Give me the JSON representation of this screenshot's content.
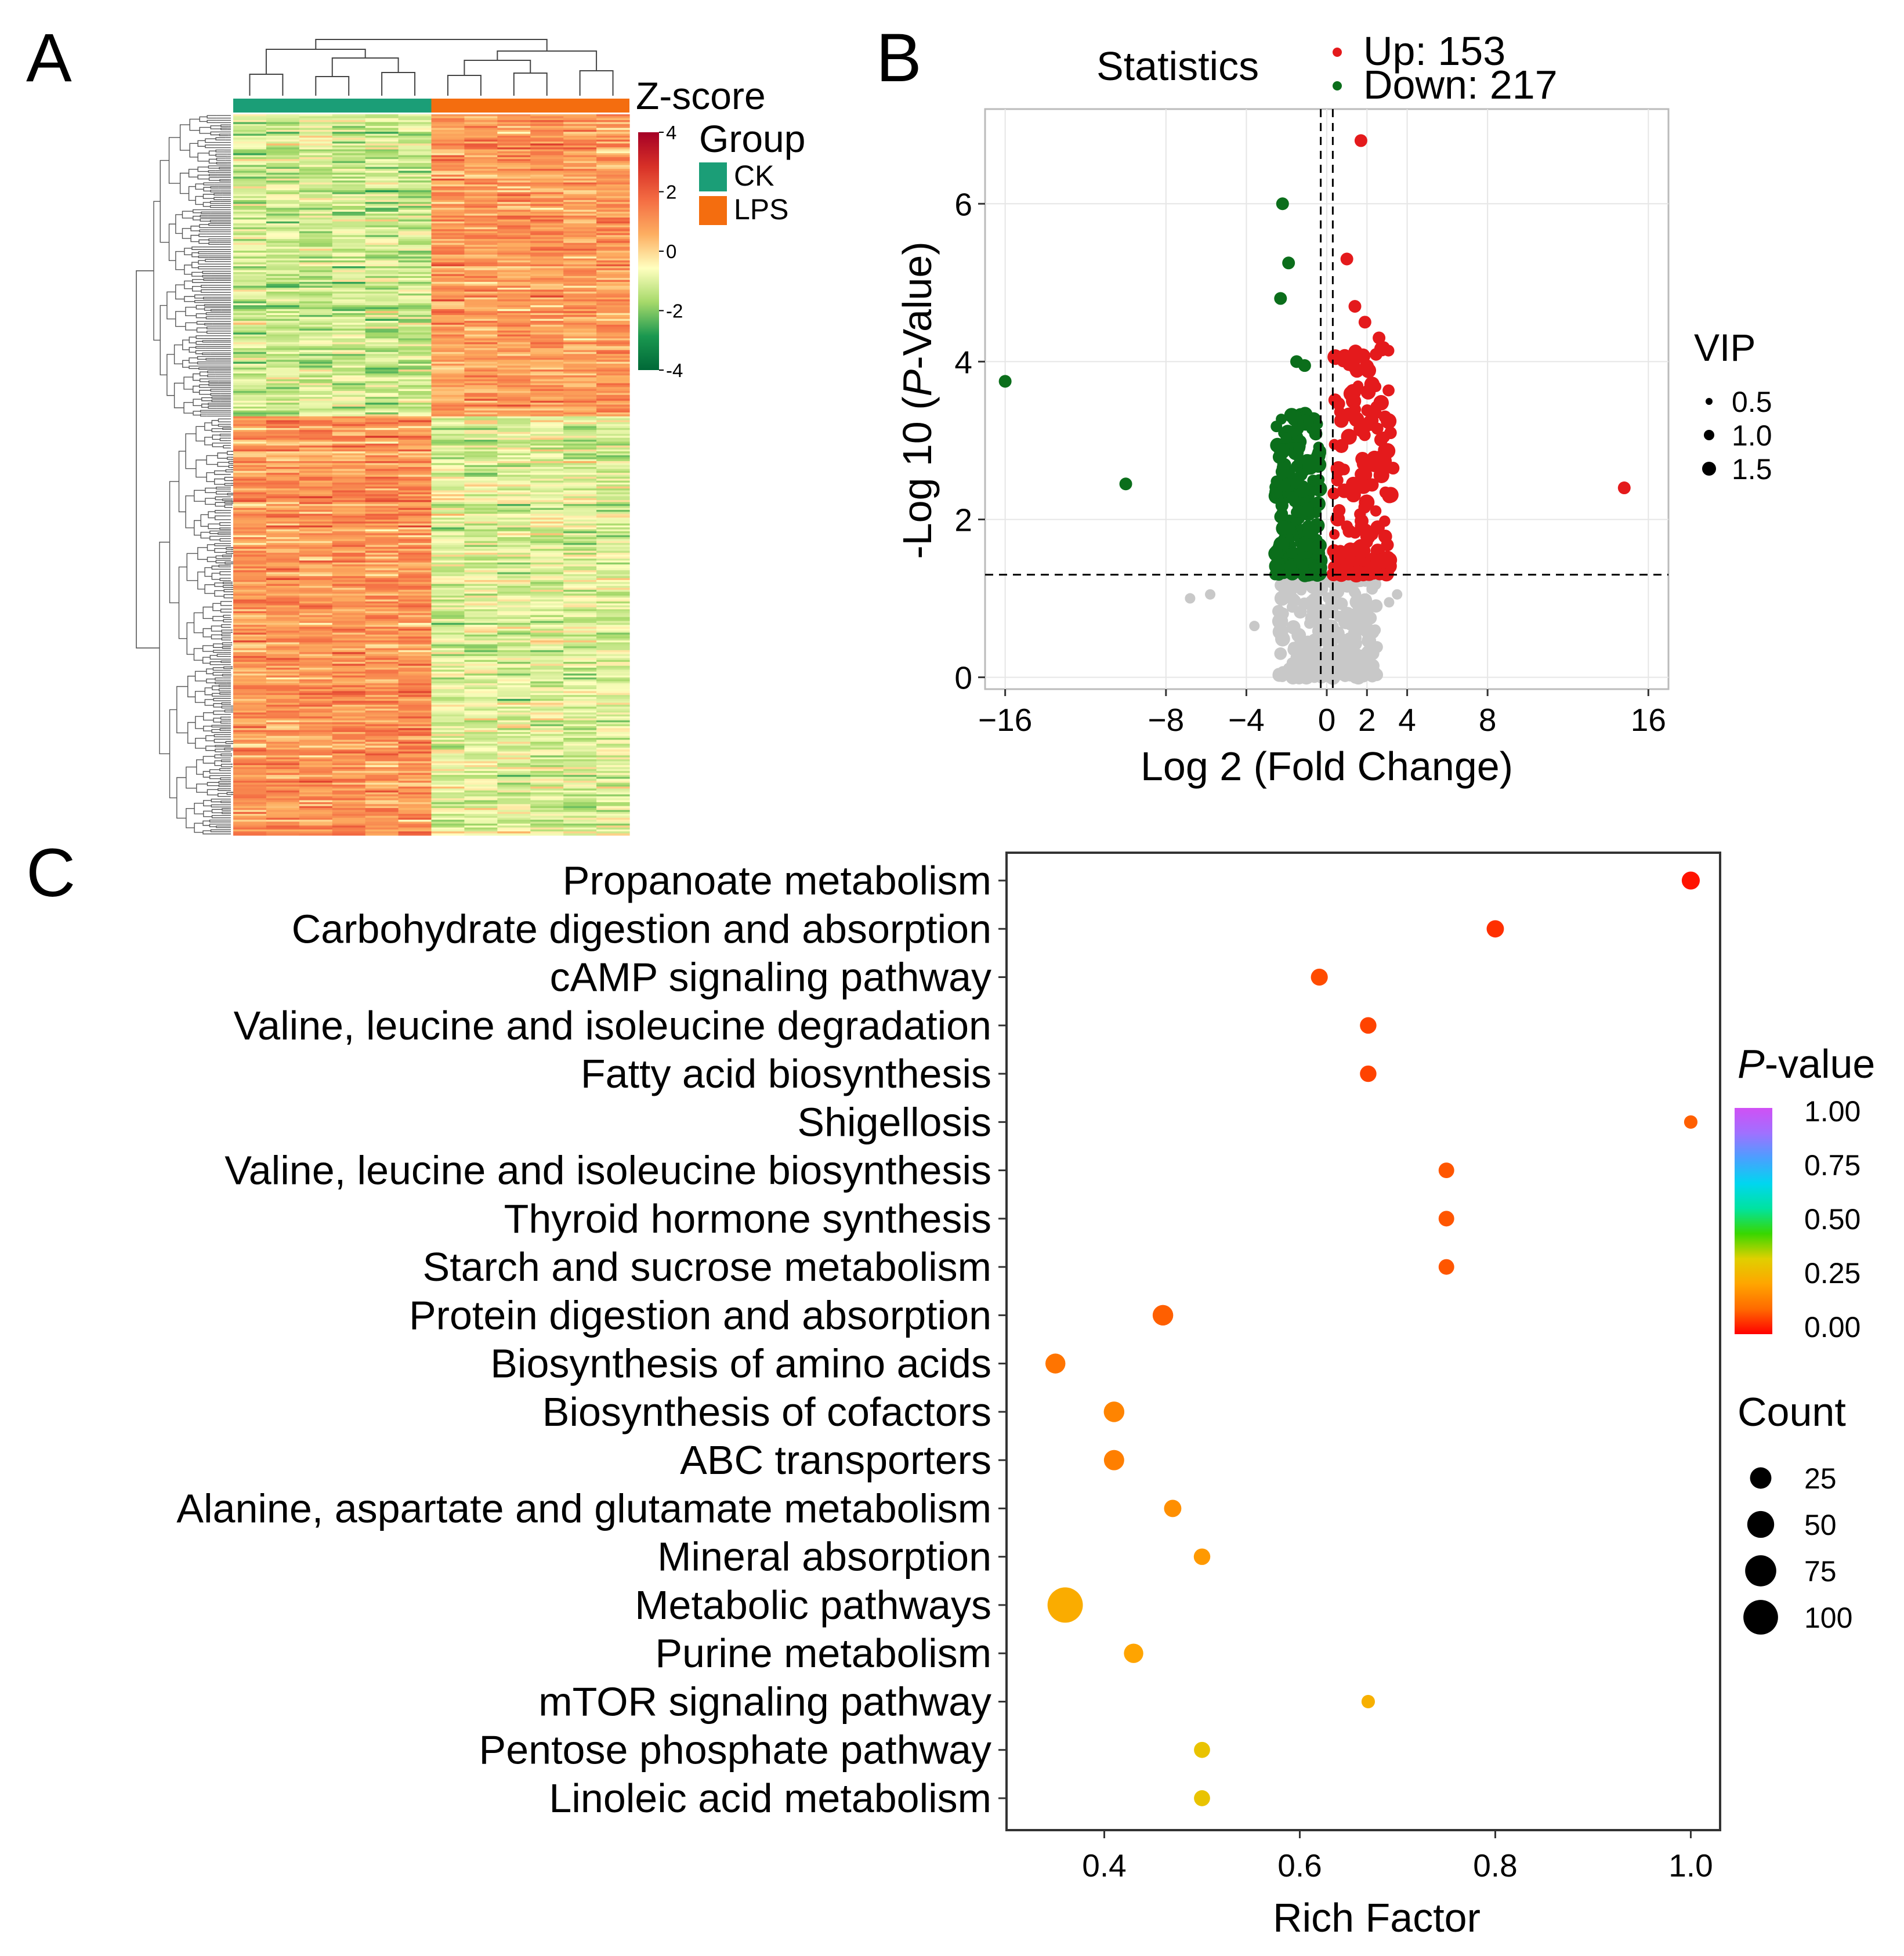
{
  "panels": {
    "a": "A",
    "b": "B",
    "c": "C"
  },
  "chart_data": [
    {
      "type": "heatmap",
      "panel": "A",
      "title": "",
      "legend_title": "Z-score",
      "legend_ticks": [
        4,
        2,
        0,
        -2,
        -4
      ],
      "colorscale": [
        "#006837",
        "#1a9850",
        "#a6d96a",
        "#ffffbf",
        "#fdae61",
        "#f46d43",
        "#d73027",
        "#a50026"
      ],
      "group_legend_title": "Group",
      "groups": [
        {
          "name": "CK",
          "color": "#1b9e77",
          "samples": 6
        },
        {
          "name": "LPS",
          "color": "#f46d0f",
          "samples": 6
        }
      ],
      "row_count": 370,
      "column_count": 12,
      "blocks": [
        {
          "rows": 0.42,
          "CK": -1.2,
          "LPS": 0.9
        },
        {
          "rows": 0.58,
          "CK": 1.0,
          "LPS": -1.0
        }
      ]
    },
    {
      "type": "scatter",
      "panel": "B",
      "title": "Statistics",
      "xlabel": "Log 2 (Fold Change)",
      "ylabel_prefix": "-Log 10 (",
      "ylabel_italic": "P",
      "ylabel_suffix": "-Value)",
      "xlim": [
        -17,
        17
      ],
      "ylim": [
        -0.15,
        7.2
      ],
      "x_ticks": [
        -16,
        -8,
        -4,
        0,
        2,
        4,
        8,
        16
      ],
      "x_tick_labels": [
        "−16",
        "−8",
        "−4",
        "0",
        "2",
        "4",
        "8",
        "16"
      ],
      "y_ticks": [
        0,
        2,
        4,
        6
      ],
      "thresholds": {
        "y": 1.3,
        "x": [
          -0.3,
          0.3
        ]
      },
      "legend": [
        {
          "label": "Up: 153",
          "color": "#e41a1c"
        },
        {
          "label": "Down: 217",
          "color": "#0b6e1b"
        }
      ],
      "size_legend_title": "VIP",
      "size_legend": [
        "0.5",
        "1.0",
        "1.5"
      ],
      "highlighted_points": [
        {
          "x": -16,
          "y": 3.75,
          "group": "down"
        },
        {
          "x": -10,
          "y": 2.45,
          "group": "down"
        },
        {
          "x": -2.2,
          "y": 6.0,
          "group": "down"
        },
        {
          "x": -1.9,
          "y": 5.25,
          "group": "down"
        },
        {
          "x": -2.3,
          "y": 4.8,
          "group": "down"
        },
        {
          "x": -1.5,
          "y": 4.0,
          "group": "down"
        },
        {
          "x": -1.1,
          "y": 3.95,
          "group": "down"
        },
        {
          "x": 1.7,
          "y": 6.8,
          "group": "up"
        },
        {
          "x": 1.0,
          "y": 5.3,
          "group": "up"
        },
        {
          "x": 14.8,
          "y": 2.4,
          "group": "up"
        },
        {
          "x": 2.6,
          "y": 4.3,
          "group": "up"
        },
        {
          "x": 1.9,
          "y": 4.5,
          "group": "up"
        },
        {
          "x": 1.4,
          "y": 4.7,
          "group": "up"
        },
        {
          "x": 3.3,
          "y": 2.65,
          "group": "up"
        },
        {
          "x": 2.9,
          "y": 3.3,
          "group": "up"
        }
      ],
      "down_cloud": {
        "count": 217,
        "x": [
          -2.6,
          -0.3
        ],
        "y": [
          1.3,
          3.4
        ]
      },
      "up_cloud": {
        "count": 153,
        "x": [
          0.3,
          3.2
        ],
        "y": [
          1.3,
          4.2
        ]
      },
      "ns_cloud": {
        "count": 230,
        "x": [
          -2.5,
          2.5
        ],
        "y": [
          0.0,
          1.3
        ]
      },
      "ns_outliers": [
        {
          "x": -6.8,
          "y": 1.0
        },
        {
          "x": -5.8,
          "y": 1.05
        },
        {
          "x": -3.6,
          "y": 0.65
        },
        {
          "x": 3.1,
          "y": 0.95
        },
        {
          "x": 3.5,
          "y": 1.05
        }
      ]
    },
    {
      "type": "scatter",
      "subtype": "bubble",
      "panel": "C",
      "title": "",
      "xlabel": "Rich Factor",
      "ylabel": "",
      "xlim": [
        0.3,
        1.03
      ],
      "x_ticks": [
        0.4,
        0.6,
        0.8,
        1.0
      ],
      "x_tick_labels": [
        "0.4",
        "0.6",
        "0.8",
        "1.0"
      ],
      "categories": [
        "Propanoate metabolism",
        "Carbohydrate digestion and absorption",
        "cAMP signaling pathway",
        "Valine, leucine and isoleucine degradation",
        "Fatty acid biosynthesis",
        "Shigellosis",
        "Valine, leucine and isoleucine biosynthesis",
        "Thyroid hormone synthesis",
        "Starch and sucrose metabolism",
        "Protein digestion and absorption",
        "Biosynthesis of amino acids",
        "Biosynthesis of cofactors",
        "ABC transporters",
        "Alanine, aspartate and glutamate metabolism",
        "Mineral absorption",
        "Metabolic pathways",
        "Purine metabolism",
        "mTOR signaling pathway",
        "Pentose phosphate pathway",
        "Linoleic acid metabolism"
      ],
      "rich_factor": [
        1.0,
        0.8,
        0.62,
        0.67,
        0.67,
        1.0,
        0.75,
        0.75,
        0.75,
        0.46,
        0.35,
        0.41,
        0.41,
        0.47,
        0.5,
        0.36,
        0.43,
        0.67,
        0.5,
        0.5
      ],
      "count": [
        14,
        12,
        11,
        10,
        10,
        4,
        8,
        8,
        8,
        22,
        20,
        22,
        21,
        12,
        10,
        105,
        18,
        4,
        9,
        9
      ],
      "p_value": [
        0.02,
        0.05,
        0.08,
        0.07,
        0.07,
        0.1,
        0.09,
        0.09,
        0.09,
        0.1,
        0.13,
        0.16,
        0.15,
        0.18,
        0.2,
        0.24,
        0.22,
        0.25,
        0.3,
        0.3
      ],
      "color_legend_title_italic": "P",
      "color_legend_title_suffix": "-value",
      "color_legend_ticks": [
        "1.00",
        "0.75",
        "0.50",
        "0.25",
        "0.00"
      ],
      "colorscale": [
        "#ff0000",
        "#ff6a00",
        "#ffa500",
        "#e0d000",
        "#38d700",
        "#00e3a0",
        "#00d6f0",
        "#4aa0ff",
        "#a070ff",
        "#d050f5"
      ],
      "size_legend_title": "Count",
      "size_legend": [
        "25",
        "50",
        "75",
        "100"
      ],
      "grid": false,
      "legend_position": "right"
    }
  ]
}
